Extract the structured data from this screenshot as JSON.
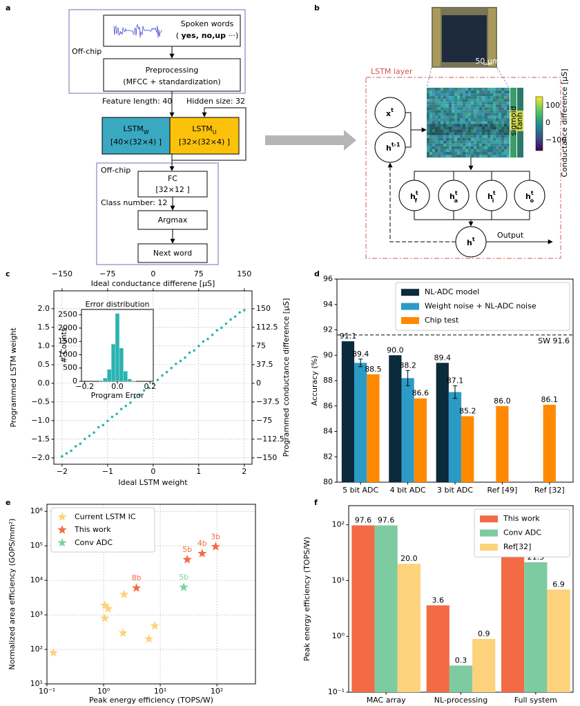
{
  "panel_labels": [
    "a",
    "b",
    "c",
    "d",
    "e",
    "f"
  ],
  "diagram_a": {
    "off_chip_top": "Off-chip",
    "input_title": "Spoken words",
    "input_examples": [
      "( ",
      "yes, no,up",
      " ···)"
    ],
    "preprocessing": "Preprocessing",
    "preprocessing_detail": "(MFCC + standardization)",
    "feature_length": "Feature length: 40",
    "hidden_size": "Hidden size: 32",
    "lstm_w": {
      "name": "LSTM",
      "sub": "W",
      "dims": "[40×(32×4) ]"
    },
    "lstm_u": {
      "name": "LSTM",
      "sub": "U",
      "dims": "[32×(32×4) ]"
    },
    "off_chip_bottom": "Off-chip",
    "fc": "FC",
    "fc_dims": "[32×12 ]",
    "class_number": "Class number: 12",
    "argmax": "Argmax",
    "next_word": "Next word"
  },
  "diagram_b": {
    "layer_label": "LSTM layer",
    "scale_bar": "50 μm",
    "colorbar_label": "Conductance difference [μS]",
    "colorbar_ticks": [
      "100",
      "0",
      "−100"
    ],
    "gate_labels": [
      "sigmoid",
      "tanh"
    ],
    "nodes": [
      {
        "base": "x",
        "sup": "t"
      },
      {
        "base": "h",
        "sup": "t-1"
      },
      {
        "base": "h",
        "sup": "t",
        "sub": "f"
      },
      {
        "base": "h",
        "sup": "t",
        "sub": "a"
      },
      {
        "base": "h",
        "sup": "t",
        "sub": "i"
      },
      {
        "base": "h",
        "sup": "t",
        "sub": "o"
      },
      {
        "base": "h",
        "sup": "t"
      }
    ],
    "output": "Output"
  },
  "chart_data": [
    {
      "type": "scatter",
      "x_label": "Ideal LSTM weight",
      "y_label": "Programmed LSTM weight",
      "x2_label": "Ideal conductance differene [μS]",
      "y2_label": "Programmed conductance difference [μS]",
      "color": "#2bb3b1",
      "x": [
        -2.0,
        -1.9,
        -1.8,
        -1.7,
        -1.6,
        -1.5,
        -1.4,
        -1.3,
        -1.2,
        -1.1,
        -1.0,
        -0.9,
        -0.8,
        -0.7,
        -0.6,
        -0.5,
        -0.4,
        -0.3,
        -0.2,
        -0.1,
        0.0,
        0.1,
        0.2,
        0.3,
        0.4,
        0.5,
        0.6,
        0.7,
        0.8,
        0.9,
        1.0,
        1.1,
        1.2,
        1.3,
        1.4,
        1.5,
        1.6,
        1.7,
        1.8,
        1.9,
        2.0
      ],
      "y": [
        -1.96,
        -1.88,
        -1.81,
        -1.69,
        -1.62,
        -1.49,
        -1.41,
        -1.32,
        -1.18,
        -1.12,
        -1.01,
        -0.9,
        -0.82,
        -0.69,
        -0.61,
        -0.52,
        -0.38,
        -0.31,
        -0.19,
        -0.12,
        0.0,
        0.09,
        0.21,
        0.3,
        0.41,
        0.52,
        0.6,
        0.69,
        0.82,
        0.88,
        1.0,
        1.12,
        1.19,
        1.3,
        1.42,
        1.49,
        1.6,
        1.71,
        1.79,
        1.9,
        1.96
      ],
      "xlim": [
        -2.18,
        2.17
      ],
      "xticks": [
        {
          "value": -2,
          "label": "−2"
        },
        {
          "value": -1,
          "label": "−1"
        },
        0,
        1,
        2
      ],
      "ylim": [
        -2.17,
        2.48
      ],
      "yticks": [
        {
          "value": -2,
          "label": "−2.0"
        },
        {
          "value": -1.5,
          "label": "−1.5"
        },
        {
          "value": -1,
          "label": "−1.0"
        },
        {
          "value": -0.5,
          "label": "−0.5"
        },
        {
          "value": 0,
          "label": "0.0"
        },
        0.5,
        {
          "value": 1,
          "label": "1.0"
        },
        1.5,
        {
          "value": 2,
          "label": "2.0"
        }
      ],
      "x2lim": [
        -163.5,
        162.75
      ],
      "x2ticks": [
        {
          "value": -150,
          "label": "−150"
        },
        {
          "value": -75,
          "label": "−75"
        },
        0,
        75,
        150
      ],
      "y2lim": [
        -162.75,
        186
      ],
      "y2ticks": [
        {
          "value": -150,
          "label": "−150"
        },
        {
          "value": -112.5,
          "label": "−112.5"
        },
        {
          "value": -75,
          "label": "−75"
        },
        {
          "value": -37.5,
          "label": "−37.5"
        },
        0,
        37.5,
        75,
        112.5,
        150
      ],
      "grid": true,
      "inset": {
        "type": "histogram",
        "title": "Error distribution",
        "x_label": "Program Error",
        "y_label": "# Counts",
        "color": "#2bb3b1",
        "bins": [
          -0.1125,
          -0.0875,
          -0.0625,
          -0.0375,
          -0.0125,
          0.0125,
          0.0375,
          0.0625,
          0.0875,
          0.1125
        ],
        "counts": [
          30,
          120,
          450,
          1400,
          2550,
          1250,
          380,
          90,
          20
        ],
        "xlim": [
          -0.22,
          0.22
        ],
        "xticks": [
          {
            "value": -0.2,
            "label": "−0.2"
          },
          {
            "value": 0,
            "label": "0.0"
          },
          0.2
        ],
        "ylim": [
          0,
          2700
        ],
        "yticks": [
          0,
          500,
          1000,
          1500,
          2000,
          2500
        ]
      }
    },
    {
      "type": "bar",
      "y_label": "Accuracy (%)",
      "categories": [
        "5 bit ADC",
        "4 bit ADC",
        "3 bit ADC",
        "Ref [49]",
        "Ref [32]"
      ],
      "series": [
        {
          "name": "NL-ADC model",
          "color": "#0b2a3c",
          "values": [
            91.1,
            90.0,
            89.4,
            null,
            null
          ],
          "value_labels": [
            "91.1",
            "90.0",
            "89.4",
            null,
            null
          ]
        },
        {
          "name": "Weight noise + NL-ADC noise",
          "color": "#2b9bc6",
          "values": [
            89.4,
            88.2,
            87.1,
            null,
            null
          ],
          "errors": [
            0.3,
            0.6,
            0.5,
            null,
            null
          ]
        },
        {
          "name": "Chip test",
          "color": "#ff8a00",
          "values": [
            88.5,
            86.6,
            85.2,
            86.0,
            86.1
          ],
          "value_labels": [
            "88.5",
            "86.6",
            "85.2",
            "86.0",
            "86.1"
          ]
        }
      ],
      "ylim": [
        80,
        96
      ],
      "yticks": [
        80,
        82,
        84,
        86,
        88,
        90,
        92,
        94,
        96
      ],
      "reference_line": {
        "value": 91.6,
        "label": "SW 91.6"
      },
      "legend": "upper right"
    },
    {
      "type": "scatter",
      "x_label": "Peak energy efficiency (TOPS/W)",
      "y_label": "Normalized area efficiency (GOPS/mm²)",
      "log_x": true,
      "log_y": true,
      "marker": "star",
      "series": [
        {
          "name": "Current LSTM IC",
          "color": "#fdd27c",
          "x": [
            0.13,
            1.05,
            1.05,
            1.2,
            2.2,
            2.3,
            6.3,
            8
          ],
          "y": [
            80,
            800,
            1900,
            1500,
            300,
            3900,
            200,
            480
          ]
        },
        {
          "name": "This work",
          "color": "#f26b45",
          "x": [
            3.8,
            30,
            55,
            95
          ],
          "y": [
            6000,
            40000,
            60000,
            95000
          ],
          "point_labels": [
            "8b",
            "5b",
            "4b",
            "3b"
          ]
        },
        {
          "name": "Conv ADC",
          "color": "#7fd1a0",
          "x": [
            26
          ],
          "y": [
            6300
          ],
          "point_labels": [
            "5b"
          ]
        }
      ],
      "xlim": [
        0.1,
        480
      ],
      "xticks": [
        {
          "value": 0.1,
          "label": "10⁻¹"
        },
        {
          "value": 1,
          "label": "10⁰"
        },
        {
          "value": 10,
          "label": "10¹"
        },
        {
          "value": 100,
          "label": "10²"
        }
      ],
      "ylim": [
        10,
        1600000
      ],
      "yticks": [
        {
          "value": 10,
          "label": "10¹"
        },
        {
          "value": 100,
          "label": "10²"
        },
        {
          "value": 1000,
          "label": "10³"
        },
        {
          "value": 10000,
          "label": "10⁴"
        },
        {
          "value": 100000,
          "label": "10⁵"
        },
        {
          "value": 1000000,
          "label": "10⁶"
        }
      ],
      "grid": true,
      "legend": "upper left"
    },
    {
      "type": "bar",
      "y_label": "Peak energy efficiency (TOPS/W)",
      "log_y": true,
      "categories": [
        "MAC array",
        "NL-processing",
        "Full system"
      ],
      "series": [
        {
          "name": "This work",
          "color": "#f26b45",
          "values": [
            97.6,
            3.6,
            31.3
          ]
        },
        {
          "name": "Conv ADC",
          "color": "#7fcba1",
          "values": [
            97.6,
            0.3,
            21.3
          ]
        },
        {
          "name": "Ref[32]",
          "color": "#fdd27c",
          "values": [
            20.0,
            0.9,
            6.9
          ],
          "value_labels": [
            "20.0",
            "0.9",
            "6.9"
          ]
        }
      ],
      "ylim": [
        0.1,
        220
      ],
      "yticks": [
        {
          "value": 0.1,
          "label": "10⁻¹"
        },
        {
          "value": 1,
          "label": "10⁰"
        },
        {
          "value": 10,
          "label": "10¹"
        },
        {
          "value": 100,
          "label": "10²"
        }
      ],
      "legend": "upper right"
    }
  ]
}
